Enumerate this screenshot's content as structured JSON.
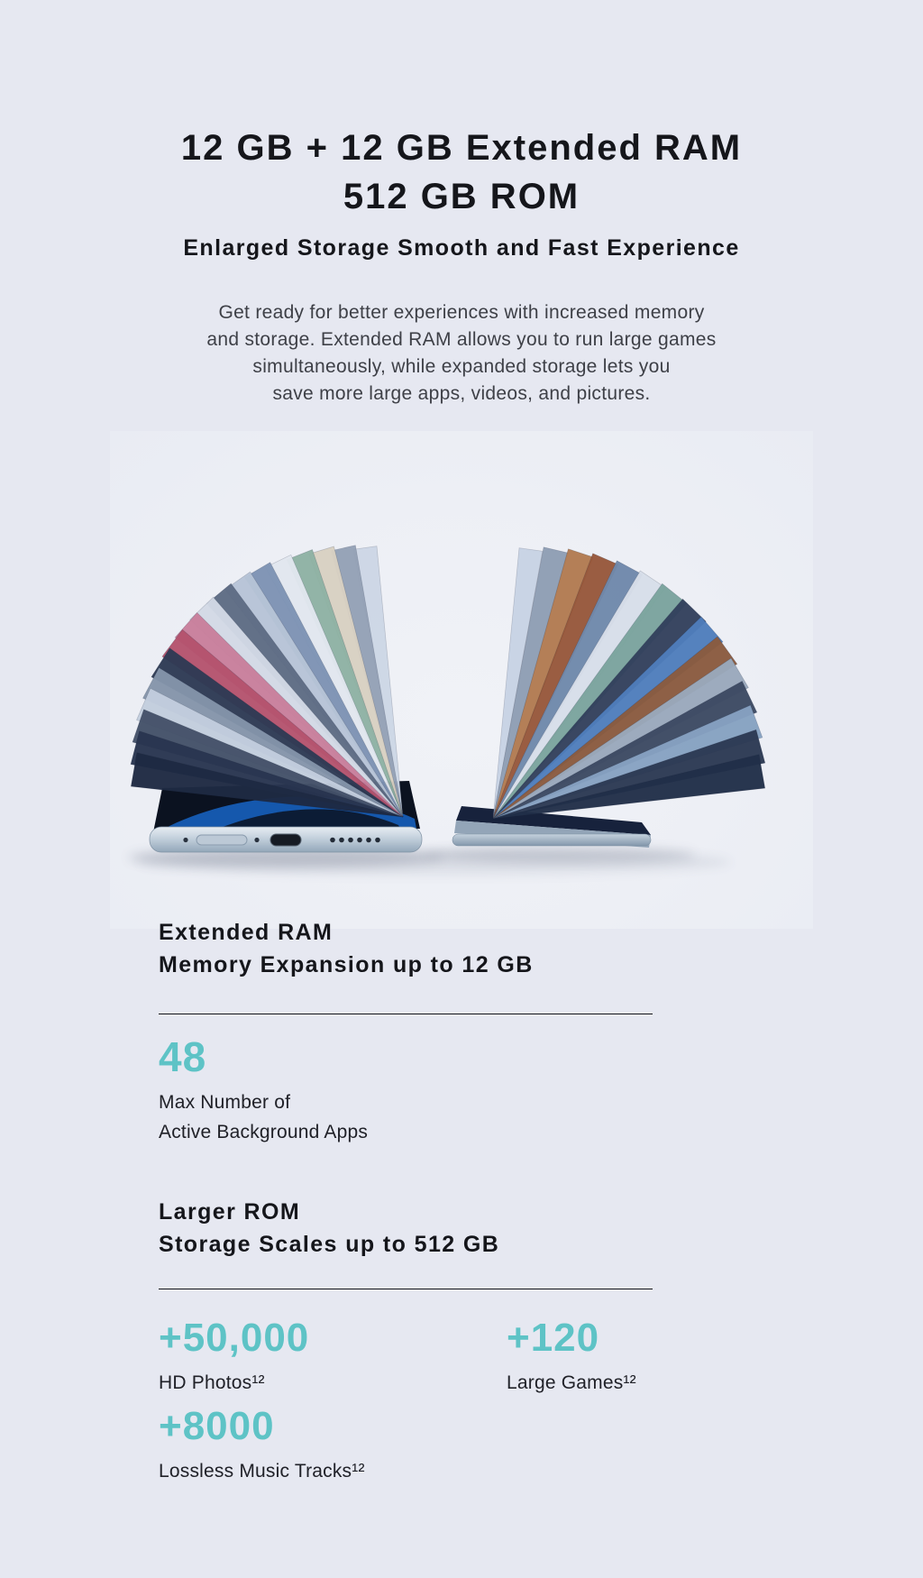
{
  "page": {
    "background": "#e6e8f1",
    "accent_teal": "#5ec3c6",
    "heading_color": "#15161b",
    "body_text_color": "#3e4047"
  },
  "hero": {
    "title_line1": "12 GB + 12 GB Extended RAM",
    "title_line2": "512 GB ROM",
    "subtitle": "Enlarged Storage Smooth and Fast Experience",
    "desc_line1": "Get ready for better experiences with increased memory",
    "desc_line2": "and storage. Extended RAM allows you to run large games",
    "desc_line3": "simultaneously, while expanded storage lets you",
    "desc_line4": "save more large apps, videos, and pictures."
  },
  "ram": {
    "heading_line1": "Extended RAM",
    "heading_line2": "Memory Expansion up to 12 GB",
    "stat_value": "48",
    "stat_caption_line1": "Max Number of",
    "stat_caption_line2": "Active Background Apps"
  },
  "rom": {
    "heading_line1": "Larger ROM",
    "heading_line2": "Storage Scales up to 512 GB",
    "stats": [
      {
        "value": "+50,000",
        "caption": "HD Photos¹²"
      },
      {
        "value": "+120",
        "caption": "Large Games¹²"
      },
      {
        "value": "+8000",
        "caption": "Lossless Music Tracks¹²"
      }
    ]
  },
  "illustration": {
    "description": "two phones lying flat with photos fanned out of them like pages",
    "left_fan": {
      "pivot": [
        325,
        428
      ],
      "angle_start": 98,
      "angle_end": 170,
      "colors": [
        "#cdd7e6",
        "#94a1b6",
        "#d9d1c3",
        "#8fb2a4",
        "#e2e7ef",
        "#7e93b4",
        "#b7c4d7",
        "#5e6c84",
        "#d3dae6",
        "#c97f9c",
        "#b5536e",
        "#2e3a54",
        "#8595ab",
        "#c3cede",
        "#445169",
        "#293550",
        "#1e2a43"
      ]
    },
    "right_fan": {
      "pivot": [
        425,
        430
      ],
      "angle_start": 82,
      "angle_end": 10,
      "colors": [
        "#c8d3e5",
        "#8f9eb4",
        "#b27b51",
        "#97583b",
        "#7089ac",
        "#d8dfea",
        "#7ba49e",
        "#33415d",
        "#4f7ebc",
        "#8b5b3f",
        "#9aa9bc",
        "#3d4a63",
        "#87a2c2",
        "#2c3953",
        "#212f49"
      ]
    },
    "phone_metal_light": "#e3eaf1",
    "phone_metal_dark": "#9bafc0",
    "phone_screen": "#0b1220",
    "phone_screen_blue": "#1661bd"
  }
}
